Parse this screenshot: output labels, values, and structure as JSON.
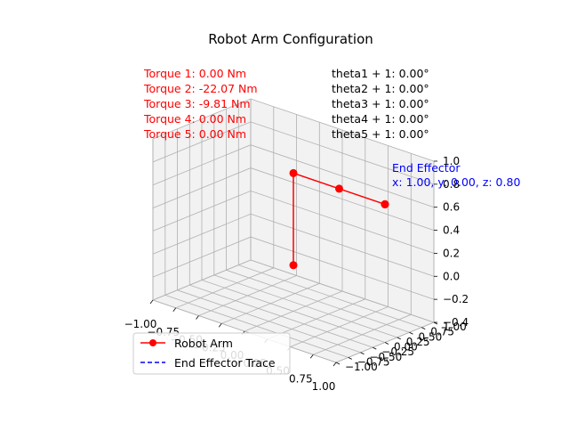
{
  "chart_data": {
    "type": "line3d",
    "title": "Robot Arm Configuration",
    "xlim": [
      -1.0,
      1.0
    ],
    "ylim": [
      -1.0,
      1.0
    ],
    "zlim": [
      -0.4,
      1.0
    ],
    "x_ticks": [
      "−1.00",
      "−0.75",
      "−0.50",
      "−0.25",
      "0.00",
      "0.25",
      "0.50",
      "0.75",
      "1.00"
    ],
    "y_ticks": [
      "−1.00",
      "−0.75",
      "−0.50",
      "−0.25",
      "0.00",
      "0.25",
      "0.50",
      "0.75",
      "1.00"
    ],
    "z_ticks": [
      "−0.4",
      "−0.2",
      "0.0",
      "0.2",
      "0.4",
      "0.6",
      "0.8",
      "1.0"
    ],
    "series": [
      {
        "name": "Robot Arm",
        "color": "#ff0000",
        "style": "solid-marker",
        "points": [
          {
            "x": 0.0,
            "y": 0.0,
            "z": 0.0
          },
          {
            "x": 0.0,
            "y": 0.0,
            "z": 0.8
          },
          {
            "x": 0.5,
            "y": 0.0,
            "z": 0.8
          },
          {
            "x": 1.0,
            "y": 0.0,
            "z": 0.8
          },
          {
            "x": 1.0,
            "y": 0.0,
            "z": 0.8
          },
          {
            "x": 1.0,
            "y": 0.0,
            "z": 0.8
          }
        ]
      },
      {
        "name": "End Effector Trace",
        "color": "#0000ff",
        "style": "dashed",
        "points": [
          {
            "x": 1.0,
            "y": 0.0,
            "z": 0.8
          }
        ]
      }
    ],
    "torques": [
      "Torque 1: 0.00 Nm",
      "Torque 2: -22.07 Nm",
      "Torque 3: -9.81 Nm",
      "Torque 4: 0.00 Nm",
      "Torque 5: 0.00 Nm"
    ],
    "thetas": [
      "theta1 + 1: 0.00°",
      "theta2 + 1: 0.00°",
      "theta3 + 1: 0.00°",
      "theta4 + 1: 0.00°",
      "theta5 + 1: 0.00°"
    ],
    "end_effector": {
      "label": "End Effector",
      "coords": "x: 1.00, y: 0.00, z: 0.80"
    },
    "legend": {
      "placement": "lower-left",
      "entries": [
        "Robot Arm",
        "End Effector Trace"
      ]
    },
    "grid": true
  }
}
